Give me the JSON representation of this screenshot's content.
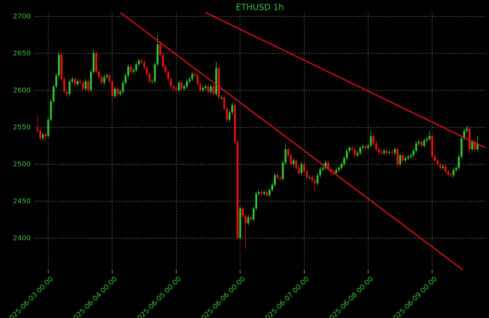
{
  "chart_data": {
    "type": "candlestick",
    "title": "ETHUSD 1h",
    "x": [
      "2025-06-02 20:00",
      "2025-06-02 21:00",
      "2025-06-02 22:00",
      "2025-06-02 23:00",
      "2025-06-03 00:00",
      "2025-06-03 01:00",
      "2025-06-03 02:00",
      "2025-06-03 03:00",
      "2025-06-03 04:00",
      "2025-06-03 05:00",
      "2025-06-03 06:00",
      "2025-06-03 07:00",
      "2025-06-03 08:00",
      "2025-06-03 09:00",
      "2025-06-03 10:00",
      "2025-06-03 11:00",
      "2025-06-03 12:00",
      "2025-06-03 13:00",
      "2025-06-03 14:00",
      "2025-06-03 15:00",
      "2025-06-03 16:00",
      "2025-06-03 17:00",
      "2025-06-03 18:00",
      "2025-06-03 19:00",
      "2025-06-03 20:00",
      "2025-06-03 21:00",
      "2025-06-03 22:00",
      "2025-06-03 23:00",
      "2025-06-04 00:00",
      "2025-06-04 01:00",
      "2025-06-04 02:00",
      "2025-06-04 03:00",
      "2025-06-04 04:00",
      "2025-06-04 05:00",
      "2025-06-04 06:00",
      "2025-06-04 07:00",
      "2025-06-04 08:00",
      "2025-06-04 09:00",
      "2025-06-04 10:00",
      "2025-06-04 11:00",
      "2025-06-04 12:00",
      "2025-06-04 13:00",
      "2025-06-04 14:00",
      "2025-06-04 15:00",
      "2025-06-04 16:00",
      "2025-06-04 17:00",
      "2025-06-04 18:00",
      "2025-06-04 19:00",
      "2025-06-04 20:00",
      "2025-06-04 21:00",
      "2025-06-04 22:00",
      "2025-06-04 23:00",
      "2025-06-05 00:00",
      "2025-06-05 01:00",
      "2025-06-05 02:00",
      "2025-06-05 03:00",
      "2025-06-05 04:00",
      "2025-06-05 05:00",
      "2025-06-05 06:00",
      "2025-06-05 07:00",
      "2025-06-05 08:00",
      "2025-06-05 09:00",
      "2025-06-05 10:00",
      "2025-06-05 11:00",
      "2025-06-05 12:00",
      "2025-06-05 13:00",
      "2025-06-05 14:00",
      "2025-06-05 15:00",
      "2025-06-05 16:00",
      "2025-06-05 17:00",
      "2025-06-05 18:00",
      "2025-06-05 19:00",
      "2025-06-05 20:00",
      "2025-06-05 21:00",
      "2025-06-05 22:00",
      "2025-06-05 23:00",
      "2025-06-06 00:00",
      "2025-06-06 01:00",
      "2025-06-06 02:00",
      "2025-06-06 03:00",
      "2025-06-06 04:00",
      "2025-06-06 05:00",
      "2025-06-06 06:00",
      "2025-06-06 07:00",
      "2025-06-06 08:00",
      "2025-06-06 09:00",
      "2025-06-06 10:00",
      "2025-06-06 11:00",
      "2025-06-06 12:00",
      "2025-06-06 13:00",
      "2025-06-06 14:00",
      "2025-06-06 15:00",
      "2025-06-06 16:00",
      "2025-06-06 17:00",
      "2025-06-06 18:00",
      "2025-06-06 19:00",
      "2025-06-06 20:00",
      "2025-06-06 21:00",
      "2025-06-06 22:00",
      "2025-06-06 23:00",
      "2025-06-07 00:00",
      "2025-06-07 01:00",
      "2025-06-07 02:00",
      "2025-06-07 03:00",
      "2025-06-07 04:00",
      "2025-06-07 05:00",
      "2025-06-07 06:00",
      "2025-06-07 07:00",
      "2025-06-07 08:00",
      "2025-06-07 09:00",
      "2025-06-07 10:00",
      "2025-06-07 11:00",
      "2025-06-07 12:00",
      "2025-06-07 13:00",
      "2025-06-07 14:00",
      "2025-06-07 15:00",
      "2025-06-07 16:00",
      "2025-06-07 17:00",
      "2025-06-07 18:00",
      "2025-06-07 19:00",
      "2025-06-07 20:00",
      "2025-06-07 21:00",
      "2025-06-07 22:00",
      "2025-06-07 23:00",
      "2025-06-08 00:00",
      "2025-06-08 01:00",
      "2025-06-08 02:00",
      "2025-06-08 03:00",
      "2025-06-08 04:00",
      "2025-06-08 05:00",
      "2025-06-08 06:00",
      "2025-06-08 07:00",
      "2025-06-08 08:00",
      "2025-06-08 09:00",
      "2025-06-08 10:00",
      "2025-06-08 11:00",
      "2025-06-08 12:00",
      "2025-06-08 13:00",
      "2025-06-08 14:00",
      "2025-06-08 15:00",
      "2025-06-08 16:00",
      "2025-06-08 17:00",
      "2025-06-08 18:00",
      "2025-06-08 19:00",
      "2025-06-08 20:00",
      "2025-06-08 21:00",
      "2025-06-08 22:00",
      "2025-06-08 23:00",
      "2025-06-09 00:00",
      "2025-06-09 01:00",
      "2025-06-09 02:00",
      "2025-06-09 03:00",
      "2025-06-09 04:00",
      "2025-06-09 05:00",
      "2025-06-09 06:00",
      "2025-06-09 07:00",
      "2025-06-09 08:00",
      "2025-06-09 09:00",
      "2025-06-09 10:00",
      "2025-06-09 11:00",
      "2025-06-09 12:00",
      "2025-06-09 13:00",
      "2025-06-09 14:00",
      "2025-06-09 15:00",
      "2025-06-09 16:00",
      "2025-06-09 17:00"
    ],
    "open": [
      2548,
      2545,
      2535,
      2540,
      2538,
      2560,
      2585,
      2605,
      2620,
      2648,
      2615,
      2598,
      2595,
      2612,
      2615,
      2608,
      2612,
      2610,
      2602,
      2612,
      2600,
      2625,
      2650,
      2625,
      2618,
      2610,
      2618,
      2620,
      2612,
      2592,
      2602,
      2595,
      2598,
      2610,
      2620,
      2632,
      2625,
      2627,
      2635,
      2640,
      2638,
      2630,
      2622,
      2612,
      2612,
      2635,
      2662,
      2648,
      2632,
      2625,
      2615,
      2605,
      2602,
      2600,
      2610,
      2602,
      2605,
      2612,
      2615,
      2622,
      2620,
      2608,
      2600,
      2603,
      2605,
      2598,
      2605,
      2595,
      2630,
      2590,
      2590,
      2575,
      2560,
      2570,
      2580,
      2530,
      2400,
      2440,
      2430,
      2420,
      2428,
      2425,
      2440,
      2460,
      2462,
      2460,
      2462,
      2458,
      2465,
      2472,
      2485,
      2482,
      2480,
      2502,
      2520,
      2512,
      2500,
      2505,
      2495,
      2488,
      2500,
      2490,
      2482,
      2482,
      2478,
      2474,
      2485,
      2493,
      2495,
      2502,
      2493,
      2490,
      2488,
      2492,
      2495,
      2500,
      2508,
      2518,
      2522,
      2520,
      2512,
      2515,
      2522,
      2524,
      2522,
      2525,
      2538,
      2528,
      2520,
      2516,
      2515,
      2518,
      2515,
      2516,
      2515,
      2520,
      2500,
      2512,
      2505,
      2508,
      2510,
      2512,
      2518,
      2528,
      2530,
      2525,
      2532,
      2534,
      2538,
      2510,
      2505,
      2500,
      2495,
      2497,
      2490,
      2486,
      2485,
      2492,
      2495,
      2510,
      2535,
      2545,
      2548,
      2520,
      2530,
      2520
    ],
    "high": [
      2566,
      2548,
      2543,
      2543,
      2563,
      2588,
      2608,
      2623,
      2651,
      2651,
      2618,
      2601,
      2615,
      2618,
      2618,
      2615,
      2615,
      2613,
      2615,
      2615,
      2628,
      2655,
      2653,
      2628,
      2621,
      2621,
      2623,
      2623,
      2615,
      2605,
      2605,
      2601,
      2613,
      2623,
      2635,
      2635,
      2630,
      2638,
      2643,
      2643,
      2641,
      2633,
      2625,
      2615,
      2638,
      2675,
      2665,
      2651,
      2635,
      2628,
      2618,
      2608,
      2605,
      2613,
      2613,
      2608,
      2615,
      2618,
      2625,
      2625,
      2623,
      2611,
      2606,
      2608,
      2608,
      2608,
      2608,
      2638,
      2633,
      2593,
      2593,
      2578,
      2573,
      2583,
      2583,
      2533,
      2443,
      2443,
      2433,
      2431,
      2431,
      2443,
      2463,
      2465,
      2465,
      2465,
      2465,
      2468,
      2475,
      2488,
      2488,
      2485,
      2505,
      2528,
      2523,
      2515,
      2508,
      2508,
      2498,
      2503,
      2503,
      2493,
      2485,
      2485,
      2481,
      2488,
      2496,
      2498,
      2505,
      2505,
      2496,
      2493,
      2495,
      2498,
      2503,
      2511,
      2521,
      2525,
      2525,
      2523,
      2518,
      2525,
      2527,
      2527,
      2528,
      2545,
      2541,
      2531,
      2523,
      2519,
      2521,
      2521,
      2519,
      2519,
      2523,
      2523,
      2515,
      2515,
      2511,
      2513,
      2515,
      2521,
      2531,
      2533,
      2533,
      2535,
      2537,
      2545,
      2541,
      2513,
      2508,
      2503,
      2500,
      2500,
      2493,
      2489,
      2495,
      2498,
      2513,
      2538,
      2548,
      2552,
      2551,
      2533,
      2533,
      2538
    ],
    "low": [
      2542,
      2532,
      2532,
      2530,
      2535,
      2557,
      2582,
      2602,
      2617,
      2612,
      2595,
      2590,
      2592,
      2609,
      2605,
      2605,
      2607,
      2599,
      2599,
      2597,
      2597,
      2622,
      2622,
      2615,
      2607,
      2607,
      2615,
      2609,
      2585,
      2589,
      2590,
      2592,
      2595,
      2607,
      2617,
      2622,
      2622,
      2624,
      2632,
      2635,
      2627,
      2619,
      2609,
      2609,
      2609,
      2632,
      2645,
      2629,
      2622,
      2612,
      2602,
      2599,
      2597,
      2597,
      2599,
      2599,
      2602,
      2609,
      2612,
      2617,
      2605,
      2597,
      2597,
      2600,
      2595,
      2595,
      2592,
      2592,
      2587,
      2587,
      2572,
      2557,
      2557,
      2567,
      2527,
      2398,
      2398,
      2427,
      2385,
      2417,
      2422,
      2422,
      2437,
      2457,
      2457,
      2457,
      2455,
      2455,
      2462,
      2469,
      2479,
      2477,
      2477,
      2499,
      2509,
      2497,
      2497,
      2492,
      2485,
      2485,
      2487,
      2479,
      2479,
      2475,
      2462,
      2471,
      2482,
      2490,
      2492,
      2490,
      2487,
      2485,
      2485,
      2489,
      2492,
      2497,
      2505,
      2515,
      2517,
      2509,
      2509,
      2512,
      2519,
      2519,
      2519,
      2522,
      2525,
      2517,
      2513,
      2512,
      2512,
      2512,
      2512,
      2512,
      2512,
      2495,
      2497,
      2502,
      2502,
      2505,
      2507,
      2509,
      2515,
      2525,
      2522,
      2522,
      2529,
      2531,
      2507,
      2502,
      2497,
      2492,
      2492,
      2487,
      2483,
      2482,
      2482,
      2489,
      2492,
      2507,
      2532,
      2542,
      2514,
      2517,
      2517,
      2517
    ],
    "close": [
      2545,
      2535,
      2540,
      2538,
      2560,
      2585,
      2605,
      2620,
      2648,
      2615,
      2598,
      2595,
      2612,
      2615,
      2608,
      2612,
      2610,
      2602,
      2612,
      2600,
      2625,
      2650,
      2625,
      2618,
      2610,
      2618,
      2620,
      2612,
      2592,
      2602,
      2595,
      2598,
      2610,
      2620,
      2632,
      2625,
      2627,
      2635,
      2640,
      2638,
      2630,
      2622,
      2612,
      2612,
      2635,
      2662,
      2648,
      2632,
      2625,
      2615,
      2605,
      2602,
      2600,
      2610,
      2602,
      2605,
      2612,
      2615,
      2622,
      2620,
      2608,
      2600,
      2603,
      2605,
      2598,
      2605,
      2595,
      2630,
      2590,
      2590,
      2575,
      2560,
      2570,
      2580,
      2530,
      2400,
      2440,
      2430,
      2420,
      2428,
      2425,
      2440,
      2460,
      2462,
      2460,
      2462,
      2458,
      2465,
      2472,
      2485,
      2482,
      2480,
      2502,
      2520,
      2512,
      2500,
      2505,
      2495,
      2488,
      2500,
      2490,
      2482,
      2482,
      2478,
      2474,
      2485,
      2493,
      2495,
      2502,
      2493,
      2490,
      2488,
      2492,
      2495,
      2500,
      2508,
      2518,
      2522,
      2520,
      2512,
      2515,
      2522,
      2524,
      2522,
      2525,
      2538,
      2528,
      2520,
      2516,
      2515,
      2518,
      2515,
      2516,
      2515,
      2520,
      2500,
      2512,
      2505,
      2508,
      2510,
      2512,
      2518,
      2528,
      2530,
      2525,
      2532,
      2534,
      2538,
      2510,
      2505,
      2500,
      2495,
      2497,
      2490,
      2486,
      2485,
      2492,
      2495,
      2510,
      2535,
      2545,
      2548,
      2520,
      2530,
      2520,
      2528
    ],
    "up_color": "#33cc33",
    "down_color": "#ee1111",
    "trendlines": [
      {
        "x": [
          "2025-06-04 03:00",
          "2025-06-09 11:30"
        ],
        "y": [
          2705,
          2357
        ],
        "color": "#e8101a"
      },
      {
        "x": [
          "2025-06-05 11:00",
          "2025-06-09 20:00"
        ],
        "y": [
          2705,
          2522
        ],
        "color": "#e8101a"
      }
    ],
    "xlim": [
      "2025-06-02 19:00",
      "2025-06-09 20:00"
    ],
    "xticks": [
      "2025-06-03 00:00",
      "2025-06-04 00:00",
      "2025-06-05 00:00",
      "2025-06-06 00:00",
      "2025-06-07 00:00",
      "2025-06-08 00:00",
      "2025-06-09 00:00"
    ],
    "ylim": [
      2356,
      2705
    ],
    "yticks": [
      2400,
      2450,
      2500,
      2550,
      2600,
      2650,
      2700
    ],
    "grid": true
  }
}
